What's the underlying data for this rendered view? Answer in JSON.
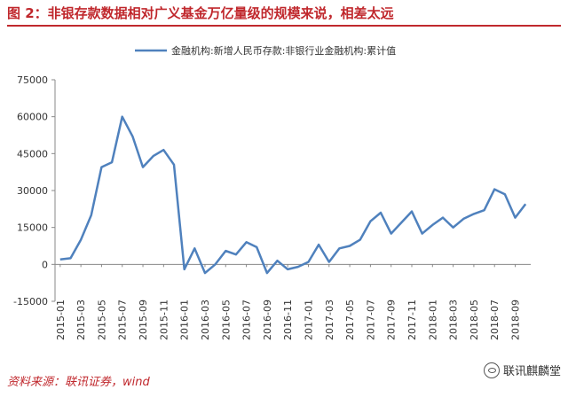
{
  "title": "图 2：非银存款数据相对广义基金万亿量级的规模来说，相差太远",
  "source": "资料来源：联讯证券，wind",
  "watermark": "联讯麒麟堂",
  "colors": {
    "accent": "#c0282d",
    "series": "#4f81bd"
  },
  "chart_data": {
    "type": "line",
    "legend": "金融机构:新增人民币存款:非银行业金融机构:累计值",
    "legend_position": "top",
    "y_ticks": [
      -15000,
      0,
      15000,
      30000,
      45000,
      60000,
      75000
    ],
    "y_tick_labels": [
      "-15000",
      "0",
      "15000",
      "30000",
      "45000",
      "60000",
      "75000"
    ],
    "ylim": [
      -15000,
      75000
    ],
    "grid": false,
    "x_tick_labels": [
      "2015-01",
      "2015-03",
      "2015-05",
      "2015-07",
      "2015-09",
      "2015-11",
      "2016-01",
      "2016-03",
      "2016-05",
      "2016-07",
      "2016-09",
      "2016-11",
      "2017-01",
      "2017-03",
      "2017-05",
      "2017-07",
      "2017-09",
      "2017-11",
      "2018-01",
      "2018-03",
      "2018-05",
      "2018-07",
      "2018-09"
    ],
    "series": [
      {
        "name": "金融机构:新增人民币存款:非银行业金融机构:累计值",
        "x": [
          "2015-01",
          "2015-02",
          "2015-03",
          "2015-04",
          "2015-05",
          "2015-06",
          "2015-07",
          "2015-08",
          "2015-09",
          "2015-10",
          "2015-11",
          "2015-12",
          "2016-01",
          "2016-02",
          "2016-03",
          "2016-04",
          "2016-05",
          "2016-06",
          "2016-07",
          "2016-08",
          "2016-09",
          "2016-10",
          "2016-11",
          "2016-12",
          "2017-01",
          "2017-02",
          "2017-03",
          "2017-04",
          "2017-05",
          "2017-06",
          "2017-07",
          "2017-08",
          "2017-09",
          "2017-10",
          "2017-11",
          "2017-12",
          "2018-01",
          "2018-02",
          "2018-03",
          "2018-04",
          "2018-05",
          "2018-06",
          "2018-07",
          "2018-08",
          "2018-09",
          "2018-10"
        ],
        "values": [
          2000,
          2500,
          10000,
          20000,
          39500,
          41500,
          60000,
          52000,
          39500,
          44000,
          46500,
          40500,
          -2000,
          6500,
          -3500,
          0,
          5500,
          4000,
          9000,
          7000,
          -3500,
          1500,
          -2000,
          -1000,
          1000,
          8000,
          1000,
          6500,
          7500,
          10000,
          17500,
          21000,
          12500,
          17000,
          21500,
          12500,
          16000,
          19000,
          15000,
          18500,
          20500,
          22000,
          30500,
          28500,
          19000,
          24500
        ]
      }
    ]
  }
}
